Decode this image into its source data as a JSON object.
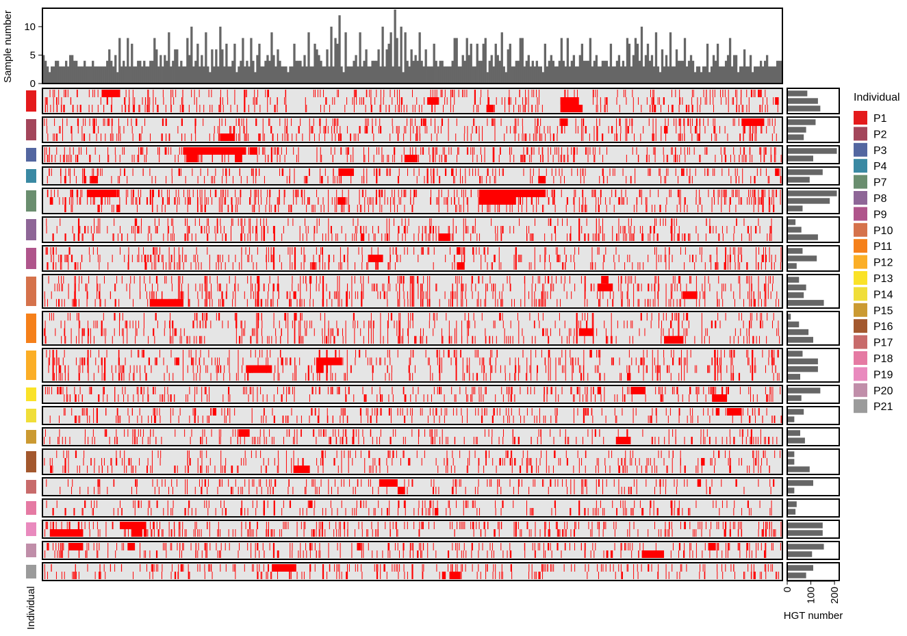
{
  "chart_data": {
    "type": "heatmap",
    "top_histogram": {
      "type": "bar",
      "ylabel": "Sample number",
      "ylim": [
        0,
        13
      ],
      "yticks": [
        "0",
        "5",
        "10"
      ],
      "n_bars": 360,
      "baseline": 3,
      "peaks": [
        {
          "at": 0.0,
          "value": 5
        },
        {
          "at": 0.02,
          "value": 4
        },
        {
          "at": 0.04,
          "value": 5
        },
        {
          "at": 0.09,
          "value": 6
        },
        {
          "at": 0.12,
          "value": 7
        },
        {
          "at": 0.15,
          "value": 8
        },
        {
          "at": 0.17,
          "value": 9
        },
        {
          "at": 0.2,
          "value": 10
        },
        {
          "at": 0.22,
          "value": 9
        },
        {
          "at": 0.24,
          "value": 10
        },
        {
          "at": 0.26,
          "value": 7
        },
        {
          "at": 0.28,
          "value": 8
        },
        {
          "at": 0.31,
          "value": 9
        },
        {
          "at": 0.34,
          "value": 7
        },
        {
          "at": 0.36,
          "value": 9
        },
        {
          "at": 0.39,
          "value": 10
        },
        {
          "at": 0.4,
          "value": 12
        },
        {
          "at": 0.43,
          "value": 9
        },
        {
          "at": 0.46,
          "value": 10
        },
        {
          "at": 0.47,
          "value": 8
        },
        {
          "at": 0.49,
          "value": 9
        },
        {
          "at": 0.475,
          "value": 13
        },
        {
          "at": 0.51,
          "value": 9
        },
        {
          "at": 0.53,
          "value": 7
        },
        {
          "at": 0.56,
          "value": 8
        },
        {
          "at": 0.58,
          "value": 7
        },
        {
          "at": 0.6,
          "value": 8
        },
        {
          "at": 0.62,
          "value": 9
        },
        {
          "at": 0.65,
          "value": 8
        },
        {
          "at": 0.68,
          "value": 7
        },
        {
          "at": 0.71,
          "value": 8
        },
        {
          "at": 0.74,
          "value": 8
        },
        {
          "at": 0.77,
          "value": 7
        },
        {
          "at": 0.79,
          "value": 8
        },
        {
          "at": 0.81,
          "value": 10
        },
        {
          "at": 0.83,
          "value": 9
        },
        {
          "at": 0.85,
          "value": 9
        },
        {
          "at": 0.87,
          "value": 8
        },
        {
          "at": 0.9,
          "value": 7
        },
        {
          "at": 0.93,
          "value": 8
        },
        {
          "at": 0.95,
          "value": 6
        },
        {
          "at": 0.98,
          "value": 5
        }
      ]
    },
    "heatmap_rows": [
      {
        "individual": "P1",
        "color": "#E41A1C",
        "n_samples": 3,
        "hgt_numbers": [
          85,
          130,
          140
        ],
        "blocks": [
          [
            0.08,
            0.105,
            0
          ],
          [
            0.52,
            0.535,
            1
          ],
          [
            0.6,
            0.61,
            2
          ],
          [
            0.7,
            0.725,
            1
          ],
          [
            0.7,
            0.73,
            2
          ],
          [
            0.99,
            0.995,
            1
          ]
        ]
      },
      {
        "individual": "P2",
        "color": "#A3465B",
        "n_samples": 3,
        "hgt_numbers": [
          120,
          80,
          70
        ],
        "blocks": [
          [
            0.24,
            0.26,
            2
          ],
          [
            0.7,
            0.71,
            0
          ],
          [
            0.84,
            0.845,
            1
          ],
          [
            0.945,
            0.96,
            0
          ],
          [
            0.96,
            0.975,
            0
          ]
        ]
      },
      {
        "individual": "P3",
        "color": "#5366A0",
        "n_samples": 2,
        "hgt_numbers": [
          210,
          110
        ],
        "blocks": [
          [
            0.19,
            0.275,
            0
          ],
          [
            0.195,
            0.21,
            1
          ],
          [
            0.26,
            0.27,
            1
          ],
          [
            0.28,
            0.29,
            0
          ],
          [
            0.49,
            0.505,
            1
          ]
        ]
      },
      {
        "individual": "P4",
        "color": "#3A89A3",
        "n_samples": 2,
        "hgt_numbers": [
          150,
          95
        ],
        "blocks": [
          [
            0.4,
            0.42,
            0
          ],
          [
            0.065,
            0.075,
            1
          ],
          [
            0.67,
            0.68,
            1
          ],
          [
            0.99,
            0.995,
            0
          ]
        ]
      },
      {
        "individual": "P7",
        "color": "#6A8E6F",
        "n_samples": 3,
        "hgt_numbers": [
          210,
          180,
          65
        ],
        "blocks": [
          [
            0.06,
            0.1,
            0
          ],
          [
            0.59,
            0.68,
            0
          ],
          [
            0.59,
            0.64,
            1
          ],
          [
            0.4,
            0.41,
            1
          ],
          [
            0.1,
            0.105,
            2
          ]
        ]
      },
      {
        "individual": "P8",
        "color": "#8E6697",
        "n_samples": 3,
        "hgt_numbers": [
          35,
          60,
          130
        ],
        "blocks": [
          [
            0.535,
            0.55,
            2
          ],
          [
            0.43,
            0.435,
            2
          ]
        ]
      },
      {
        "individual": "P9",
        "color": "#AF558B",
        "n_samples": 3,
        "hgt_numbers": [
          65,
          125,
          40
        ],
        "blocks": [
          [
            0.44,
            0.46,
            1
          ],
          [
            0.56,
            0.565,
            0
          ],
          [
            0.56,
            0.57,
            2
          ]
        ]
      },
      {
        "individual": "P10",
        "color": "#D5724B",
        "n_samples": 4,
        "hgt_numbers": [
          50,
          80,
          70,
          155
        ],
        "blocks": [
          [
            0.145,
            0.19,
            3
          ],
          [
            0.75,
            0.77,
            1
          ],
          [
            0.755,
            0.765,
            0
          ],
          [
            0.865,
            0.885,
            2
          ]
        ]
      },
      {
        "individual": "P11",
        "color": "#F5801A",
        "n_samples": 4,
        "hgt_numbers": [
          15,
          50,
          90,
          110
        ],
        "blocks": [
          [
            0.725,
            0.745,
            2
          ],
          [
            0.84,
            0.86,
            3
          ],
          [
            0.855,
            0.865,
            3
          ]
        ]
      },
      {
        "individual": "P12",
        "color": "#FBAE26",
        "n_samples": 4,
        "hgt_numbers": [
          65,
          130,
          130,
          55
        ],
        "blocks": [
          [
            0.37,
            0.405,
            1
          ],
          [
            0.275,
            0.31,
            2
          ],
          [
            0.37,
            0.38,
            2
          ],
          [
            0.79,
            0.795,
            3
          ],
          [
            0.18,
            0.185,
            1
          ]
        ]
      },
      {
        "individual": "P13",
        "color": "#FAE228",
        "n_samples": 2,
        "hgt_numbers": [
          140,
          60
        ],
        "blocks": [
          [
            0.795,
            0.815,
            0
          ],
          [
            0.905,
            0.925,
            1
          ],
          [
            0.75,
            0.755,
            0
          ]
        ]
      },
      {
        "individual": "P14",
        "color": "#F0DE39",
        "n_samples": 2,
        "hgt_numbers": [
          70,
          30
        ],
        "blocks": [
          [
            0.91,
            0.915,
            0
          ],
          [
            0.925,
            0.945,
            0
          ],
          [
            0.23,
            0.235,
            0
          ]
        ]
      },
      {
        "individual": "P15",
        "color": "#CB9A32",
        "n_samples": 2,
        "hgt_numbers": [
          55,
          75
        ],
        "blocks": [
          [
            0.265,
            0.28,
            0
          ],
          [
            0.775,
            0.795,
            1
          ]
        ]
      },
      {
        "individual": "P16",
        "color": "#A3582E",
        "n_samples": 3,
        "hgt_numbers": [
          30,
          30,
          95
        ],
        "blocks": [
          [
            0.34,
            0.36,
            2
          ],
          [
            0.89,
            0.895,
            1
          ]
        ]
      },
      {
        "individual": "P17",
        "color": "#C86B6B",
        "n_samples": 2,
        "hgt_numbers": [
          110,
          30
        ],
        "blocks": [
          [
            0.455,
            0.48,
            0
          ],
          [
            0.48,
            0.49,
            1
          ],
          [
            0.885,
            0.89,
            0
          ]
        ]
      },
      {
        "individual": "P18",
        "color": "#E57AA3",
        "n_samples": 2,
        "hgt_numbers": [
          40,
          35
        ],
        "blocks": [
          [
            0.36,
            0.365,
            0
          ],
          [
            0.53,
            0.535,
            1
          ]
        ]
      },
      {
        "individual": "P19",
        "color": "#E98ABE",
        "n_samples": 2,
        "hgt_numbers": [
          150,
          150
        ],
        "blocks": [
          [
            0.01,
            0.055,
            1
          ],
          [
            0.105,
            0.14,
            0
          ],
          [
            0.12,
            0.135,
            1
          ]
        ]
      },
      {
        "individual": "P20",
        "color": "#C08EA9",
        "n_samples": 2,
        "hgt_numbers": [
          155,
          105
        ],
        "blocks": [
          [
            0.035,
            0.055,
            0
          ],
          [
            0.115,
            0.125,
            0
          ],
          [
            0.81,
            0.84,
            1
          ],
          [
            0.9,
            0.91,
            0
          ],
          [
            0.425,
            0.43,
            0
          ]
        ]
      },
      {
        "individual": "P21",
        "color": "#9B9B9B",
        "n_samples": 2,
        "hgt_numbers": [
          110,
          80
        ],
        "blocks": [
          [
            0.31,
            0.34,
            0
          ],
          [
            0.55,
            0.565,
            1
          ],
          [
            0.54,
            0.545,
            1
          ]
        ]
      }
    ],
    "left_axis_label": "Individual",
    "right_bar_xlabel": "HGT number",
    "right_bar_xlim": [
      0,
      220
    ],
    "right_bar_xticks": [
      "0",
      "100",
      "200"
    ],
    "legend": {
      "title": "Individual",
      "placement": "right",
      "entries": [
        "P1",
        "P2",
        "P3",
        "P4",
        "P7",
        "P8",
        "P9",
        "P10",
        "P11",
        "P12",
        "P13",
        "P14",
        "P15",
        "P16",
        "P17",
        "P18",
        "P19",
        "P20",
        "P21"
      ]
    },
    "presence_color": "#FF0000",
    "absence_color": "#E5E5E5",
    "bar_color": "#666666"
  }
}
